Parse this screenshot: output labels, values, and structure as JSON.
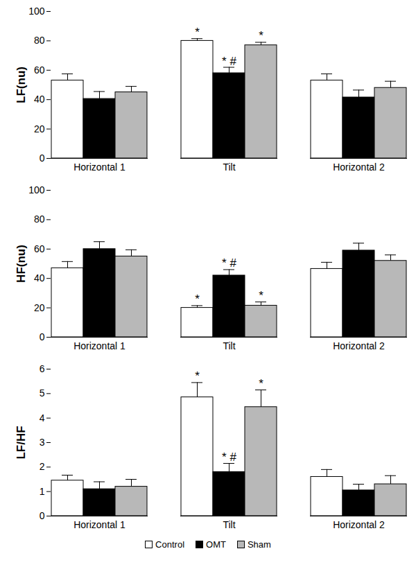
{
  "chart_data": [
    {
      "type": "bar",
      "ylabel": "LF(nu)",
      "categories": [
        "Horizontal 1",
        "Tilt",
        "Horizontal 2"
      ],
      "ylim": [
        0,
        100
      ],
      "yticks": [
        0,
        20,
        40,
        60,
        80,
        100
      ],
      "legend": "bottom",
      "series": [
        {
          "name": "Control",
          "color": "#ffffff",
          "values": [
            53,
            80,
            53
          ],
          "errors": [
            4.5,
            1.5,
            4.5
          ],
          "annotations": [
            null,
            "*",
            null
          ]
        },
        {
          "name": "OMT",
          "color": "#000000",
          "values": [
            40.5,
            58,
            41.5
          ],
          "errors": [
            5,
            4,
            5
          ],
          "annotations": [
            null,
            "* #",
            null
          ]
        },
        {
          "name": "Sham",
          "color": "#b8b8b8",
          "values": [
            45,
            77,
            48
          ],
          "errors": [
            4,
            2,
            4.5
          ],
          "annotations": [
            null,
            "*",
            null
          ]
        }
      ]
    },
    {
      "type": "bar",
      "ylabel": "HF(nu)",
      "categories": [
        "Horizontal 1",
        "Tilt",
        "Horizontal 2"
      ],
      "ylim": [
        0,
        100
      ],
      "yticks": [
        0,
        20,
        40,
        60,
        80,
        100
      ],
      "legend": "bottom",
      "series": [
        {
          "name": "Control",
          "color": "#ffffff",
          "values": [
            47,
            20,
            46.5
          ],
          "errors": [
            4.5,
            1.5,
            4.5
          ],
          "annotations": [
            null,
            "*",
            null
          ]
        },
        {
          "name": "OMT",
          "color": "#000000",
          "values": [
            60,
            42,
            59
          ],
          "errors": [
            5,
            4,
            5
          ],
          "annotations": [
            null,
            "* #",
            null
          ]
        },
        {
          "name": "Sham",
          "color": "#b8b8b8",
          "values": [
            55,
            21.5,
            52
          ],
          "errors": [
            4.5,
            2.5,
            4
          ],
          "annotations": [
            null,
            "*",
            null
          ]
        }
      ]
    },
    {
      "type": "bar",
      "ylabel": "LF/HF",
      "categories": [
        "Horizontal 1",
        "Tilt",
        "Horizontal 2"
      ],
      "ylim": [
        0,
        6
      ],
      "yticks": [
        0,
        1,
        2,
        3,
        4,
        5,
        6
      ],
      "legend": "bottom",
      "series": [
        {
          "name": "Control",
          "color": "#ffffff",
          "values": [
            1.45,
            4.85,
            1.6
          ],
          "errors": [
            0.22,
            0.6,
            0.3
          ],
          "annotations": [
            null,
            "*",
            null
          ]
        },
        {
          "name": "OMT",
          "color": "#000000",
          "values": [
            1.1,
            1.8,
            1.05
          ],
          "errors": [
            0.3,
            0.35,
            0.25
          ],
          "annotations": [
            null,
            "* #",
            null
          ]
        },
        {
          "name": "Sham",
          "color": "#b8b8b8",
          "values": [
            1.2,
            4.45,
            1.3
          ],
          "errors": [
            0.3,
            0.7,
            0.35
          ],
          "annotations": [
            null,
            "*",
            null
          ]
        }
      ]
    }
  ]
}
